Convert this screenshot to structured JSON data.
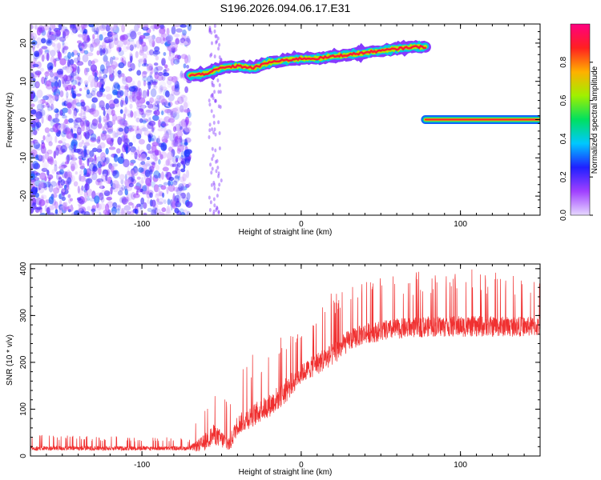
{
  "title": "S196.2026.094.06.17.E31",
  "chart_data": [
    {
      "type": "heatmap",
      "xlabel": "Height of straight line (km)",
      "ylabel": "Frequency (Hz)",
      "xlim": [
        -170,
        150
      ],
      "ylim": [
        -25,
        25
      ],
      "x_ticks": [
        -100,
        0,
        100
      ],
      "y_ticks": [
        -20,
        -10,
        0,
        10,
        20
      ],
      "colorbar": {
        "label": "Normalized spectral amplitude",
        "range": [
          0,
          1
        ],
        "ticks": [
          "0.0",
          "0.2",
          "0.4",
          "0.6",
          "0.8"
        ],
        "colors": [
          "#e6d8ff",
          "#a040ff",
          "#2020ff",
          "#00c8ff",
          "#00e060",
          "#a0f000",
          "#ffb000",
          "#ff2020",
          "#ff0080"
        ]
      },
      "noise_region": {
        "x_range": [
          -170,
          -70
        ],
        "y_range": [
          -25,
          25
        ],
        "amplitude": 0.3
      },
      "ridge": [
        {
          "x": -70,
          "y": 11.5
        },
        {
          "x": -60,
          "y": 12
        },
        {
          "x": -50,
          "y": 13.5
        },
        {
          "x": -40,
          "y": 14
        },
        {
          "x": -30,
          "y": 13.5
        },
        {
          "x": -20,
          "y": 15
        },
        {
          "x": -10,
          "y": 15.5
        },
        {
          "x": 0,
          "y": 16
        },
        {
          "x": 10,
          "y": 16
        },
        {
          "x": 20,
          "y": 16.5
        },
        {
          "x": 30,
          "y": 17
        },
        {
          "x": 40,
          "y": 17.5
        },
        {
          "x": 50,
          "y": 18
        },
        {
          "x": 60,
          "y": 18.5
        },
        {
          "x": 70,
          "y": 19
        },
        {
          "x": 78,
          "y": 19
        }
      ],
      "flat_line": {
        "x_range": [
          78,
          150
        ],
        "y": 0
      }
    },
    {
      "type": "line",
      "xlabel": "Height of straight line (km)",
      "ylabel": "SNR (10 * v/v)",
      "xlim": [
        -170,
        150
      ],
      "ylim": [
        0,
        410
      ],
      "x_ticks": [
        -100,
        0,
        100
      ],
      "y_ticks": [
        0,
        100,
        200,
        300,
        400
      ],
      "color": "#f03030",
      "profile": [
        {
          "x": -170,
          "base": 15,
          "peak": 45
        },
        {
          "x": -70,
          "base": 15,
          "peak": 40
        },
        {
          "x": -62,
          "base": 20,
          "peak": 120
        },
        {
          "x": -55,
          "base": 40,
          "peak": 160
        },
        {
          "x": -45,
          "base": 20,
          "peak": 120
        },
        {
          "x": -40,
          "base": 60,
          "peak": 180
        },
        {
          "x": -30,
          "base": 80,
          "peak": 220
        },
        {
          "x": -20,
          "base": 100,
          "peak": 240
        },
        {
          "x": -10,
          "base": 130,
          "peak": 290
        },
        {
          "x": 0,
          "base": 170,
          "peak": 280
        },
        {
          "x": 10,
          "base": 190,
          "peak": 330
        },
        {
          "x": 20,
          "base": 210,
          "peak": 350
        },
        {
          "x": 30,
          "base": 240,
          "peak": 370
        },
        {
          "x": 40,
          "base": 255,
          "peak": 380
        },
        {
          "x": 60,
          "base": 265,
          "peak": 390
        },
        {
          "x": 80,
          "base": 270,
          "peak": 395
        },
        {
          "x": 100,
          "base": 270,
          "peak": 400
        },
        {
          "x": 150,
          "base": 270,
          "peak": 390
        }
      ]
    }
  ]
}
